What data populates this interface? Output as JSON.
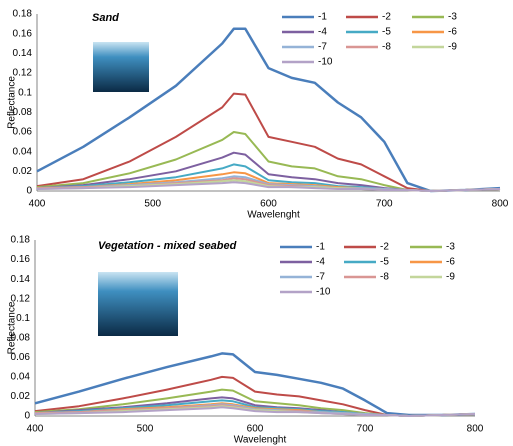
{
  "chart_data": [
    {
      "type": "line",
      "title": "Sand",
      "x_label": "Wavelenght",
      "y_label": "Reflectance",
      "x": [
        400,
        440,
        480,
        520,
        560,
        570,
        580,
        600,
        620,
        640,
        660,
        680,
        700,
        720,
        740,
        770,
        800
      ],
      "xlim": [
        400,
        800
      ],
      "xticks": [
        400,
        500,
        600,
        700,
        800
      ],
      "ylim": [
        0,
        0.18
      ],
      "yticks": [
        0,
        0.02,
        0.04,
        0.06,
        0.08,
        0.1,
        0.12,
        0.14,
        0.16,
        0.18
      ],
      "legend": "upper right",
      "series": [
        {
          "name": "-1",
          "color": "#4a7ebb",
          "values": [
            0.02,
            0.045,
            0.075,
            0.107,
            0.15,
            0.165,
            0.165,
            0.125,
            0.115,
            0.11,
            0.09,
            0.075,
            0.05,
            0.008,
            0,
            0.001,
            0.003
          ]
        },
        {
          "name": "-2",
          "color": "#be4b48",
          "values": [
            0.005,
            0.012,
            0.03,
            0.055,
            0.085,
            0.099,
            0.098,
            0.055,
            0.05,
            0.045,
            0.033,
            0.027,
            0.015,
            0.003,
            0,
            0.001,
            0.002
          ]
        },
        {
          "name": "-3",
          "color": "#98b954",
          "values": [
            0.004,
            0.008,
            0.018,
            0.032,
            0.052,
            0.06,
            0.058,
            0.03,
            0.025,
            0.023,
            0.015,
            0.012,
            0.006,
            0.001,
            0,
            0.001,
            0.002
          ]
        },
        {
          "name": "-4",
          "color": "#7d60a0",
          "values": [
            0.003,
            0.006,
            0.012,
            0.02,
            0.034,
            0.039,
            0.037,
            0.017,
            0.014,
            0.012,
            0.008,
            0.006,
            0.003,
            0.001,
            0,
            0.001,
            0.002
          ]
        },
        {
          "name": "-5",
          "color": "#46aac5",
          "values": [
            0.003,
            0.005,
            0.009,
            0.014,
            0.023,
            0.027,
            0.025,
            0.011,
            0.009,
            0.008,
            0.005,
            0.004,
            0.002,
            0.001,
            0,
            0.001,
            0.002
          ]
        },
        {
          "name": "-6",
          "color": "#f79646",
          "values": [
            0.003,
            0.004,
            0.007,
            0.011,
            0.017,
            0.019,
            0.018,
            0.008,
            0.007,
            0.006,
            0.004,
            0.003,
            0.002,
            0.001,
            0,
            0.001,
            0.002
          ]
        },
        {
          "name": "-7",
          "color": "#95b3d7",
          "values": [
            0.003,
            0.004,
            0.006,
            0.009,
            0.013,
            0.015,
            0.014,
            0.007,
            0.006,
            0.005,
            0.003,
            0.003,
            0.002,
            0.001,
            0,
            0.001,
            0.002
          ]
        },
        {
          "name": "-8",
          "color": "#d99694",
          "values": [
            0.003,
            0.004,
            0.005,
            0.008,
            0.011,
            0.013,
            0.012,
            0.006,
            0.005,
            0.004,
            0.003,
            0.002,
            0.001,
            0.001,
            0,
            0.001,
            0.002
          ]
        },
        {
          "name": "-9",
          "color": "#c3d69b",
          "values": [
            0.002,
            0.003,
            0.005,
            0.007,
            0.01,
            0.011,
            0.01,
            0.005,
            0.004,
            0.004,
            0.003,
            0.002,
            0.001,
            0.001,
            0,
            0.001,
            0.002
          ]
        },
        {
          "name": "-10",
          "color": "#b3a2c7",
          "values": [
            0.002,
            0.003,
            0.004,
            0.006,
            0.008,
            0.009,
            0.008,
            0.004,
            0.004,
            0.003,
            0.002,
            0.002,
            0.001,
            0.001,
            0,
            0.001,
            0.002
          ]
        }
      ]
    },
    {
      "type": "line",
      "title": "Vegetation - mixed seabed",
      "x_label": "Wavelenght",
      "y_label": "Reflectance",
      "x": [
        400,
        440,
        480,
        520,
        560,
        570,
        580,
        600,
        620,
        640,
        660,
        680,
        700,
        720,
        740,
        770,
        800
      ],
      "xlim": [
        400,
        800
      ],
      "xticks": [
        400,
        500,
        600,
        700,
        800
      ],
      "ylim": [
        0,
        0.18
      ],
      "yticks": [
        0,
        0.02,
        0.04,
        0.06,
        0.08,
        0.1,
        0.12,
        0.14,
        0.16,
        0.18
      ],
      "legend": "upper right",
      "series": [
        {
          "name": "-1",
          "color": "#4a7ebb",
          "values": [
            0.013,
            0.025,
            0.038,
            0.05,
            0.061,
            0.064,
            0.063,
            0.045,
            0.042,
            0.038,
            0.034,
            0.028,
            0.016,
            0.003,
            0.001,
            0.001,
            0.002
          ]
        },
        {
          "name": "-2",
          "color": "#be4b48",
          "values": [
            0.005,
            0.01,
            0.018,
            0.027,
            0.037,
            0.04,
            0.039,
            0.025,
            0.022,
            0.02,
            0.016,
            0.012,
            0.006,
            0.001,
            0,
            0.001,
            0.002
          ]
        },
        {
          "name": "-3",
          "color": "#98b954",
          "values": [
            0.004,
            0.007,
            0.012,
            0.018,
            0.025,
            0.027,
            0.026,
            0.015,
            0.013,
            0.011,
            0.008,
            0.006,
            0.003,
            0.001,
            0,
            0.001,
            0.002
          ]
        },
        {
          "name": "-4",
          "color": "#7d60a0",
          "values": [
            0.003,
            0.006,
            0.009,
            0.013,
            0.018,
            0.019,
            0.018,
            0.011,
            0.009,
            0.008,
            0.006,
            0.004,
            0.002,
            0.001,
            0,
            0.001,
            0.002
          ]
        },
        {
          "name": "-5",
          "color": "#46aac5",
          "values": [
            0.003,
            0.005,
            0.008,
            0.011,
            0.015,
            0.016,
            0.015,
            0.009,
            0.008,
            0.007,
            0.005,
            0.004,
            0.002,
            0.001,
            0,
            0.001,
            0.002
          ]
        },
        {
          "name": "-6",
          "color": "#f79646",
          "values": [
            0.003,
            0.004,
            0.007,
            0.009,
            0.012,
            0.013,
            0.012,
            0.008,
            0.007,
            0.006,
            0.004,
            0.003,
            0.002,
            0.001,
            0,
            0.001,
            0.002
          ]
        },
        {
          "name": "-7",
          "color": "#95b3d7",
          "values": [
            0.003,
            0.004,
            0.006,
            0.008,
            0.011,
            0.012,
            0.011,
            0.007,
            0.006,
            0.005,
            0.004,
            0.003,
            0.002,
            0.001,
            0,
            0.001,
            0.002
          ]
        },
        {
          "name": "-8",
          "color": "#d99694",
          "values": [
            0.003,
            0.004,
            0.006,
            0.008,
            0.01,
            0.011,
            0.01,
            0.006,
            0.005,
            0.005,
            0.003,
            0.002,
            0.001,
            0.001,
            0,
            0.001,
            0.002
          ]
        },
        {
          "name": "-9",
          "color": "#c3d69b",
          "values": [
            0.002,
            0.003,
            0.005,
            0.007,
            0.009,
            0.01,
            0.009,
            0.006,
            0.005,
            0.004,
            0.003,
            0.002,
            0.001,
            0.001,
            0,
            0.001,
            0.002
          ]
        },
        {
          "name": "-10",
          "color": "#b3a2c7",
          "values": [
            0.002,
            0.003,
            0.004,
            0.006,
            0.008,
            0.009,
            0.008,
            0.005,
            0.004,
            0.004,
            0.003,
            0.002,
            0.001,
            0.001,
            0,
            0.001,
            0.002
          ]
        }
      ]
    }
  ]
}
